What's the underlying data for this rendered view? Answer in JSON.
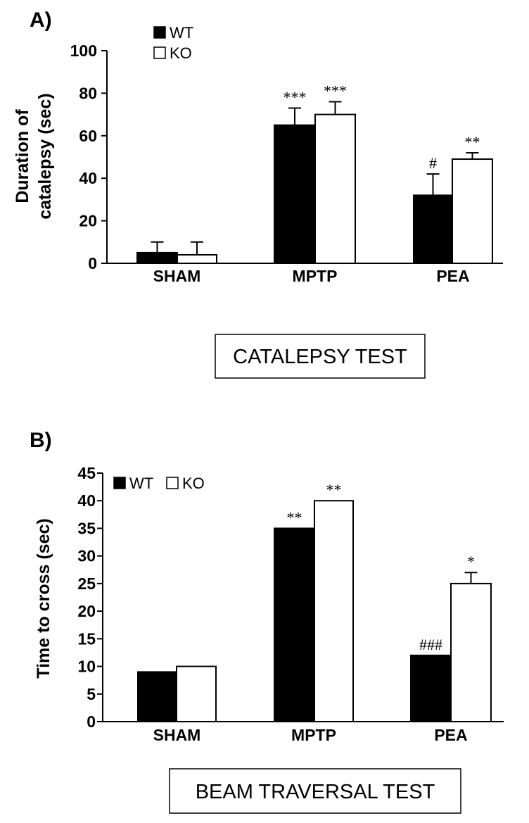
{
  "chart_data": [
    {
      "type": "bar",
      "panel_label": "A)",
      "categories": [
        "SHAM",
        "MPTP",
        "PEA"
      ],
      "series": [
        {
          "name": "WT",
          "color": "#000000",
          "values": [
            5,
            65,
            32
          ],
          "errors": [
            5,
            8,
            10
          ]
        },
        {
          "name": "KO",
          "color": "#ffffff",
          "values": [
            4,
            70,
            49
          ],
          "errors": [
            6,
            6,
            3
          ]
        }
      ],
      "annotations": [
        {
          "category": "MPTP",
          "series": "WT",
          "text": "***"
        },
        {
          "category": "MPTP",
          "series": "KO",
          "text": "***"
        },
        {
          "category": "PEA",
          "series": "WT",
          "text": "#"
        },
        {
          "category": "PEA",
          "series": "KO",
          "text": "**"
        }
      ],
      "ylabel_line1": "Duration of",
      "ylabel_line2": "catalepsy (sec)",
      "ylim": [
        0,
        100
      ],
      "yticks": [
        "0",
        "20",
        "40",
        "60",
        "80",
        "100"
      ],
      "legend_position": "top-left",
      "grid": false,
      "test_label": "CATALEPSY TEST"
    },
    {
      "type": "bar",
      "panel_label": "B)",
      "categories": [
        "SHAM",
        "MPTP",
        "PEA"
      ],
      "series": [
        {
          "name": "WT",
          "color": "#000000",
          "values": [
            9,
            35,
            12
          ],
          "errors": [
            0,
            0,
            0
          ]
        },
        {
          "name": "KO",
          "color": "#ffffff",
          "values": [
            10,
            40,
            25
          ],
          "errors": [
            0,
            0,
            2
          ]
        }
      ],
      "annotations": [
        {
          "category": "MPTP",
          "series": "WT",
          "text": "**"
        },
        {
          "category": "MPTP",
          "series": "KO",
          "text": "**"
        },
        {
          "category": "PEA",
          "series": "WT",
          "text": "###"
        },
        {
          "category": "PEA",
          "series": "KO",
          "text": "*"
        }
      ],
      "ylabel": "Time to cross (sec)",
      "ylim": [
        0,
        45
      ],
      "yticks": [
        "0",
        "5",
        "10",
        "15",
        "20",
        "25",
        "30",
        "35",
        "40",
        "45"
      ],
      "legend_position": "top-left",
      "grid": false,
      "test_label": "BEAM TRAVERSAL TEST"
    }
  ]
}
